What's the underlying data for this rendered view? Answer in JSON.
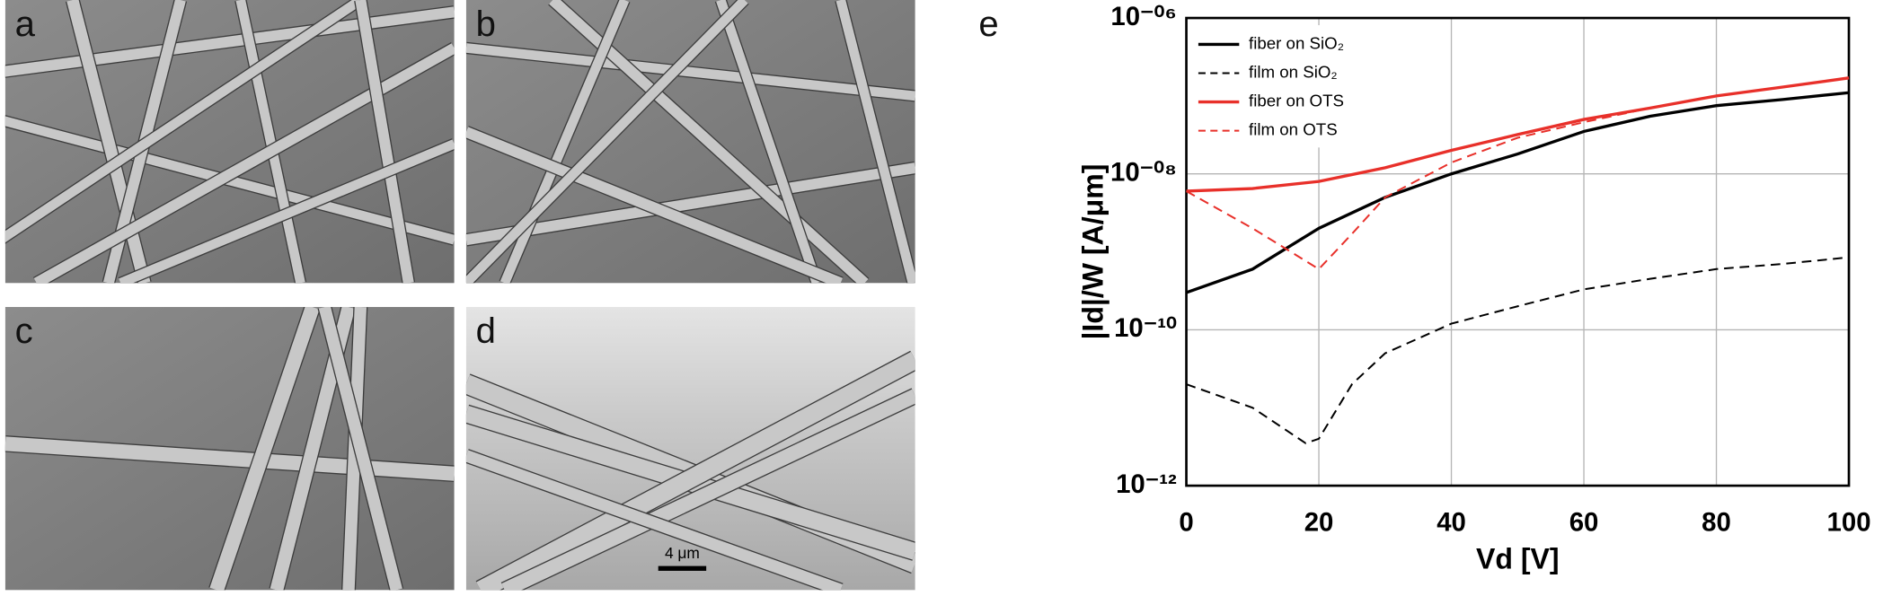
{
  "panels": {
    "a": "a",
    "b": "b",
    "c": "c",
    "d": "d",
    "scale_bar": "4 μm"
  },
  "chart_data": {
    "type": "line",
    "panel_label": "e",
    "xlabel": "Vd [V]",
    "ylabel": "|Id|/W [A/μm]",
    "xlim": [
      0,
      100
    ],
    "xticks": [
      0,
      20,
      40,
      60,
      80,
      100
    ],
    "ylim": [
      1e-12,
      1e-06
    ],
    "yscale": "log",
    "yticks": [
      {
        "value": 1e-12,
        "label": "10⁻¹²"
      },
      {
        "value": 1e-10,
        "label": "10⁻¹⁰"
      },
      {
        "value": 1e-08,
        "label": "10⁻⁰⁸"
      },
      {
        "value": 1e-06,
        "label": "10⁻⁰⁶"
      }
    ],
    "grid": true,
    "legend": "upper left",
    "series": [
      {
        "name": "fiber on SiO₂",
        "color": "#000000",
        "dashed": false,
        "x": [
          0,
          10,
          20,
          30,
          40,
          50,
          60,
          70,
          80,
          90,
          100
        ],
        "values": [
          3e-10,
          6e-10,
          2e-09,
          5e-09,
          1e-08,
          1.8e-08,
          3.5e-08,
          5.5e-08,
          7.5e-08,
          9e-08,
          1.1e-07
        ]
      },
      {
        "name": "film on SiO₂",
        "color": "#000000",
        "dashed": true,
        "x": [
          0,
          10,
          18,
          20,
          25,
          30,
          40,
          50,
          60,
          70,
          80,
          90,
          100
        ],
        "values": [
          2e-11,
          1e-11,
          3.5e-12,
          4e-12,
          2e-11,
          5e-11,
          1.2e-10,
          2e-10,
          3.3e-10,
          4.5e-10,
          6e-10,
          7e-10,
          8.5e-10
        ]
      },
      {
        "name": "fiber on OTS",
        "color": "#e8302a",
        "dashed": false,
        "x": [
          0,
          10,
          20,
          30,
          40,
          50,
          60,
          70,
          80,
          90,
          100
        ],
        "values": [
          6e-09,
          6.5e-09,
          8e-09,
          1.2e-08,
          2e-08,
          3.2e-08,
          5e-08,
          7e-08,
          1e-07,
          1.3e-07,
          1.7e-07
        ]
      },
      {
        "name": "film on OTS",
        "color": "#e8302a",
        "dashed": true,
        "x": [
          0,
          10,
          20,
          25,
          30,
          40,
          50,
          60,
          70,
          80,
          90,
          100
        ],
        "values": [
          6e-09,
          2e-09,
          6e-10,
          1.7e-09,
          5e-09,
          1.4e-08,
          2.9e-08,
          4.6e-08,
          7e-08,
          1e-07,
          1.3e-07,
          1.7e-07
        ]
      }
    ]
  }
}
